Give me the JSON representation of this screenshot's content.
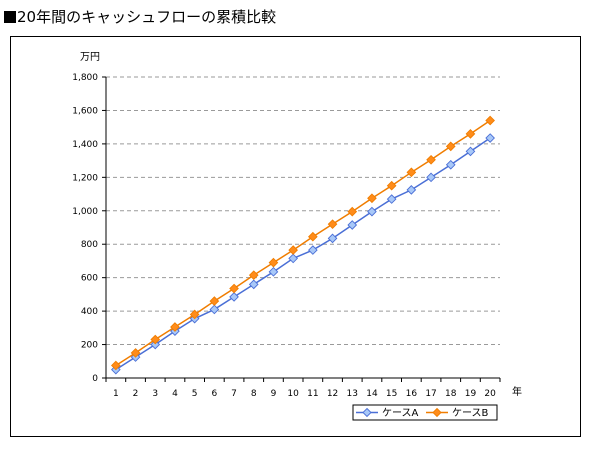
{
  "page": {
    "title": "20年間のキャッシュフローの累積比較"
  },
  "chart_data": {
    "type": "line",
    "title": "",
    "xlabel": "年",
    "ylabel": "万円",
    "x": [
      1,
      2,
      3,
      4,
      5,
      6,
      7,
      8,
      9,
      10,
      11,
      12,
      13,
      14,
      15,
      16,
      17,
      18,
      19,
      20
    ],
    "x_tick_labels": [
      "1",
      "2",
      "3",
      "4",
      "5",
      "6",
      "7",
      "8",
      "9",
      "10",
      "11",
      "12",
      "13",
      "14",
      "15",
      "16",
      "17",
      "18",
      "19",
      "20"
    ],
    "ylim": [
      0,
      1800
    ],
    "y_ticks": [
      0,
      200,
      400,
      600,
      800,
      1000,
      1200,
      1400,
      1600,
      1800
    ],
    "y_tick_labels": [
      "0",
      "200",
      "400",
      "600",
      "800",
      "1,000",
      "1,200",
      "1,400",
      "1,600",
      "1,800"
    ],
    "grid": "horizontal dashed",
    "legend_position": "bottom-right",
    "series": [
      {
        "name": "ケースA",
        "color": "#4a6fd6",
        "marker_fill": "#a8c8f8",
        "marker": "diamond",
        "values": [
          50,
          125,
          200,
          280,
          355,
          410,
          485,
          560,
          635,
          715,
          765,
          835,
          915,
          995,
          1070,
          1125,
          1200,
          1275,
          1355,
          1435
        ]
      },
      {
        "name": "ケースB",
        "color": "#f07d00",
        "marker_fill": "#ff8c1a",
        "marker": "diamond",
        "values": [
          75,
          150,
          230,
          305,
          380,
          460,
          535,
          615,
          690,
          765,
          845,
          920,
          995,
          1075,
          1150,
          1230,
          1305,
          1385,
          1460,
          1540
        ]
      }
    ]
  }
}
